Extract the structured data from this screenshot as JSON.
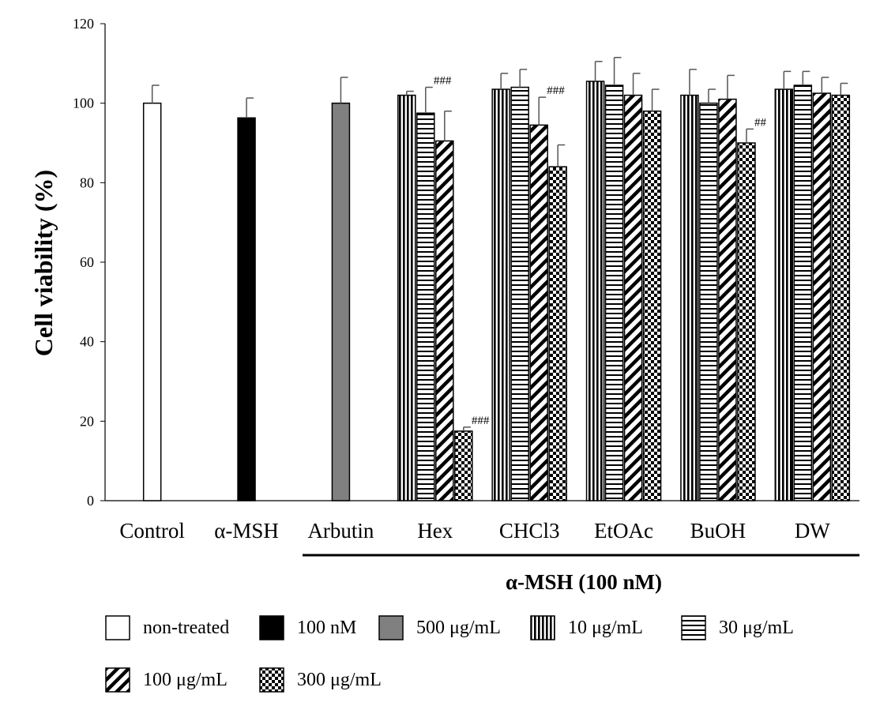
{
  "chart_data": {
    "type": "bar",
    "ylabel": "Cell viability (%)",
    "ylim": [
      0,
      120
    ],
    "y_ticks": [
      "0",
      "20",
      "40",
      "60",
      "80",
      "100",
      "120"
    ],
    "group_axis_label": "α-MSH (100 nM)",
    "grid": false,
    "legend_placement": "bottom",
    "categories": [
      "Control",
      "α-MSH",
      "Arbutin",
      "Hex",
      "CHCl3",
      "EtOAc",
      "BuOH",
      "DW"
    ],
    "series": [
      {
        "name": "non-treated",
        "pattern": "white",
        "values": [
          100,
          null,
          null,
          null,
          null,
          null,
          null,
          null
        ],
        "errors": [
          4.5,
          null,
          null,
          null,
          null,
          null,
          null,
          null
        ],
        "annotations": [
          null,
          null,
          null,
          null,
          null,
          null,
          null,
          null
        ]
      },
      {
        "name": "100 nM",
        "pattern": "black",
        "values": [
          null,
          96.3,
          null,
          null,
          null,
          null,
          null,
          null
        ],
        "errors": [
          null,
          5,
          null,
          null,
          null,
          null,
          null,
          null
        ],
        "annotations": [
          null,
          null,
          null,
          null,
          null,
          null,
          null,
          null
        ]
      },
      {
        "name": "500 μg/mL",
        "pattern": "gray",
        "values": [
          null,
          null,
          100,
          null,
          null,
          null,
          null,
          null
        ],
        "errors": [
          null,
          null,
          6.5,
          null,
          null,
          null,
          null,
          null
        ],
        "annotations": [
          null,
          null,
          null,
          null,
          null,
          null,
          null,
          null
        ]
      },
      {
        "name": "10 μg/mL",
        "pattern": "vertical",
        "values": [
          null,
          null,
          null,
          102,
          103.5,
          105.5,
          102,
          103.5
        ],
        "errors": [
          null,
          null,
          null,
          1,
          4,
          5,
          6.5,
          4.5
        ],
        "annotations": [
          null,
          null,
          null,
          null,
          null,
          null,
          null,
          null
        ]
      },
      {
        "name": "30 μg/mL",
        "pattern": "horizontal",
        "values": [
          null,
          null,
          null,
          97.5,
          104,
          104.5,
          100,
          104.5
        ],
        "errors": [
          null,
          null,
          null,
          6.5,
          4.5,
          7,
          3.5,
          3.5
        ],
        "annotations": [
          null,
          null,
          null,
          "###",
          null,
          null,
          null,
          null
        ]
      },
      {
        "name": "100 μg/mL",
        "pattern": "diagonal",
        "values": [
          null,
          null,
          null,
          90.5,
          94.5,
          102,
          101,
          102.5
        ],
        "errors": [
          null,
          null,
          null,
          7.5,
          7,
          5.5,
          6,
          4
        ],
        "annotations": [
          null,
          null,
          null,
          null,
          "###",
          null,
          null,
          null
        ]
      },
      {
        "name": "300 μg/mL",
        "pattern": "checker",
        "values": [
          null,
          null,
          null,
          17.5,
          84,
          98,
          90,
          102
        ],
        "errors": [
          null,
          null,
          null,
          1,
          5.5,
          5.5,
          3.5,
          3
        ],
        "annotations": [
          null,
          null,
          null,
          "###",
          null,
          null,
          "##",
          null
        ]
      }
    ]
  }
}
